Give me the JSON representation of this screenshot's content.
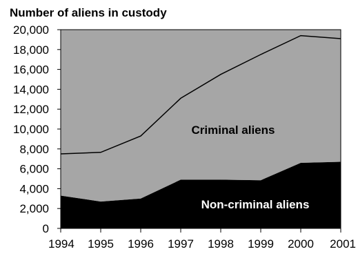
{
  "chart_data": {
    "type": "area",
    "title": "Number of aliens in custody",
    "xlabel": "",
    "ylabel": "",
    "stacked": true,
    "x": [
      1994,
      1995,
      1996,
      1997,
      1998,
      1999,
      2000,
      2001
    ],
    "x_tick_labels": [
      "1994",
      "1995",
      "1996",
      "1997",
      "1998",
      "1999",
      "2000",
      "2001"
    ],
    "ylim": [
      0,
      20000
    ],
    "y_tick_labels": [
      "0",
      "2,000",
      "4,000",
      "6,000",
      "8,000",
      "10,000",
      "12,000",
      "14,000",
      "16,000",
      "18,000",
      "20,000"
    ],
    "grid": false,
    "legend": "none",
    "series": [
      {
        "name": "Non-criminal aliens",
        "values": [
          3300,
          2700,
          3000,
          4900,
          4900,
          4850,
          6600,
          6700
        ],
        "color": "#000000",
        "label_color": "#ffffff"
      },
      {
        "name": "Criminal aliens",
        "values": [
          4200,
          4950,
          6300,
          8200,
          10600,
          12650,
          12800,
          12400
        ],
        "color": "#a6a6a6",
        "label_color": "#000000"
      }
    ],
    "totals": [
      7500,
      7650,
      9300,
      13100,
      15500,
      17500,
      19400,
      19100
    ]
  }
}
